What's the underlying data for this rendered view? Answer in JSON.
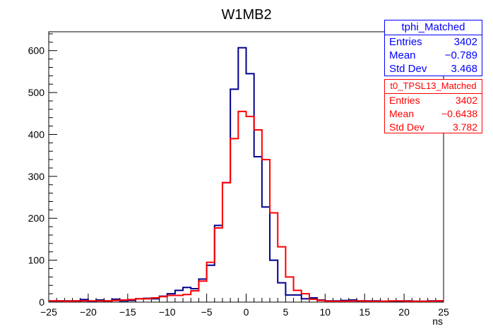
{
  "chart_data": {
    "type": "histogram",
    "title": "W1MB2",
    "xlabel": "ns",
    "ylabel": "",
    "xlim": [
      -25,
      25
    ],
    "ylim": [
      0,
      645
    ],
    "bin_width": 1,
    "x_ticks": [
      -25,
      -20,
      -15,
      -10,
      -5,
      0,
      5,
      10,
      15,
      20,
      25
    ],
    "y_ticks": [
      0,
      100,
      200,
      300,
      400,
      500,
      600
    ],
    "bin_edges_start": -25,
    "series": [
      {
        "name": "tphi_Matched",
        "color": "#00008b",
        "values": [
          3,
          3,
          3,
          3,
          6,
          2,
          5,
          3,
          7,
          3,
          4,
          8,
          9,
          8,
          14,
          20,
          28,
          35,
          32,
          55,
          88,
          183,
          285,
          508,
          607,
          545,
          347,
          227,
          100,
          46,
          17,
          17,
          8,
          10,
          5,
          3,
          3,
          4,
          5,
          3,
          3,
          3,
          2,
          2,
          2,
          3,
          2,
          2,
          3,
          3
        ]
      },
      {
        "name": "t0_TPSL13_Matched",
        "color": "#ff0000",
        "values": [
          3,
          3,
          2,
          3,
          3,
          3,
          3,
          3,
          4,
          5,
          6,
          8,
          8,
          10,
          13,
          16,
          16,
          18,
          27,
          50,
          95,
          177,
          285,
          390,
          455,
          443,
          411,
          340,
          213,
          132,
          60,
          28,
          20,
          7,
          4,
          2,
          2,
          2,
          3,
          3,
          2,
          2,
          2,
          3,
          3,
          2,
          2,
          2,
          2,
          3
        ]
      }
    ]
  },
  "stats": {
    "blue": {
      "title": "tphi_Matched",
      "entries_label": "Entries",
      "entries": "3402",
      "mean_label": "Mean",
      "mean": "−0.789",
      "std_label": "Std Dev",
      "std": "3.468"
    },
    "red": {
      "title": "t0_TPSL13_Matched",
      "entries_label": "Entries",
      "entries": "3402",
      "mean_label": "Mean",
      "mean": "−0.6438",
      "std_label": "Std Dev",
      "std": "3.782"
    }
  }
}
